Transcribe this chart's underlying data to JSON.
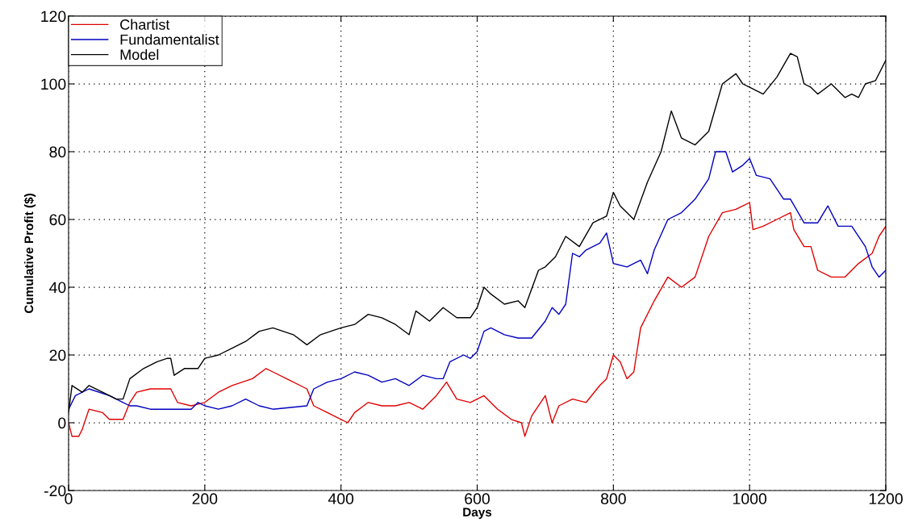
{
  "chart_data": {
    "type": "line",
    "xlabel": "Days",
    "ylabel": "Cumulative Profit ($)",
    "xlim": [
      0,
      1200
    ],
    "ylim": [
      -20,
      120
    ],
    "xticks": [
      0,
      200,
      400,
      600,
      800,
      1000,
      1200
    ],
    "yticks": [
      -20,
      0,
      20,
      40,
      60,
      80,
      100,
      120
    ],
    "grid": true,
    "legend": "top left",
    "line_style": "solid",
    "marker": "none",
    "series": [
      {
        "name": "Chartist",
        "color": "#e00000",
        "x": [
          0,
          5,
          15,
          20,
          30,
          50,
          60,
          80,
          90,
          100,
          120,
          150,
          160,
          180,
          200,
          220,
          240,
          270,
          290,
          300,
          320,
          350,
          360,
          380,
          400,
          410,
          420,
          440,
          460,
          480,
          500,
          520,
          540,
          555,
          570,
          590,
          610,
          630,
          650,
          665,
          670,
          680,
          700,
          710,
          720,
          740,
          760,
          780,
          790,
          800,
          810,
          820,
          830,
          840,
          860,
          880,
          900,
          920,
          940,
          960,
          980,
          1000,
          1005,
          1020,
          1040,
          1060,
          1065,
          1080,
          1090,
          1100,
          1120,
          1140,
          1160,
          1180,
          1190,
          1200
        ],
        "values": [
          0,
          -4,
          -4,
          -2,
          4,
          3,
          1,
          1,
          6,
          9,
          10,
          10,
          6,
          5,
          6,
          9,
          11,
          13,
          16,
          15,
          13,
          10,
          5,
          3,
          1,
          0,
          3,
          6,
          5,
          5,
          6,
          4,
          8,
          12,
          7,
          6,
          8,
          4,
          1,
          0,
          -4,
          2,
          8,
          0,
          5,
          7,
          6,
          11,
          13,
          20,
          18,
          13,
          15,
          28,
          36,
          43,
          40,
          43,
          55,
          62,
          63,
          65,
          57,
          58,
          60,
          62,
          57,
          52,
          52,
          45,
          43,
          43,
          47,
          50,
          55,
          58
        ]
      },
      {
        "name": "Fundamentalist",
        "color": "#0000c0",
        "x": [
          0,
          10,
          30,
          60,
          80,
          90,
          100,
          120,
          180,
          190,
          200,
          220,
          240,
          260,
          280,
          300,
          350,
          360,
          380,
          400,
          420,
          440,
          460,
          480,
          500,
          520,
          540,
          550,
          560,
          580,
          590,
          600,
          610,
          620,
          640,
          660,
          680,
          700,
          710,
          720,
          730,
          740,
          750,
          760,
          780,
          790,
          800,
          820,
          840,
          850,
          860,
          880,
          900,
          920,
          940,
          950,
          965,
          975,
          990,
          1000,
          1010,
          1030,
          1050,
          1060,
          1080,
          1100,
          1115,
          1130,
          1150,
          1170,
          1180,
          1190,
          1200
        ],
        "values": [
          4,
          8,
          10,
          8,
          6,
          5,
          5,
          4,
          4,
          6,
          5,
          4,
          5,
          7,
          5,
          4,
          5,
          10,
          12,
          13,
          15,
          14,
          12,
          13,
          11,
          14,
          13,
          13,
          18,
          20,
          19,
          21,
          27,
          28,
          26,
          25,
          25,
          30,
          34,
          32,
          35,
          50,
          49,
          51,
          53,
          56,
          47,
          46,
          48,
          44,
          51,
          60,
          62,
          66,
          72,
          80,
          80,
          74,
          76,
          78,
          73,
          72,
          66,
          66,
          59,
          59,
          64,
          58,
          58,
          52,
          46,
          43,
          45
        ]
      },
      {
        "name": "Model",
        "color": "#000000",
        "x": [
          0,
          5,
          20,
          30,
          50,
          70,
          80,
          90,
          110,
          130,
          145,
          150,
          155,
          170,
          190,
          200,
          220,
          240,
          260,
          280,
          300,
          330,
          350,
          370,
          400,
          420,
          440,
          460,
          480,
          500,
          510,
          530,
          550,
          570,
          590,
          600,
          610,
          620,
          640,
          660,
          670,
          690,
          700,
          715,
          730,
          750,
          770,
          790,
          800,
          810,
          820,
          830,
          850,
          870,
          880,
          885,
          900,
          920,
          940,
          960,
          980,
          990,
          1000,
          1020,
          1040,
          1060,
          1070,
          1080,
          1090,
          1100,
          1120,
          1140,
          1150,
          1160,
          1170,
          1185,
          1200
        ],
        "values": [
          3,
          11,
          9,
          11,
          9,
          7,
          7,
          13,
          16,
          18,
          19,
          19,
          14,
          16,
          16,
          19,
          20,
          22,
          24,
          27,
          28,
          26,
          23,
          26,
          28,
          29,
          32,
          31,
          29,
          26,
          33,
          30,
          34,
          31,
          31,
          34,
          40,
          38,
          35,
          36,
          34,
          45,
          46,
          49,
          55,
          52,
          59,
          61,
          68,
          64,
          62,
          60,
          71,
          80,
          88,
          92,
          84,
          82,
          86,
          100,
          103,
          100,
          99,
          97,
          102,
          109,
          108,
          100,
          99,
          97,
          100,
          96,
          97,
          96,
          100,
          101,
          107
        ]
      }
    ]
  }
}
